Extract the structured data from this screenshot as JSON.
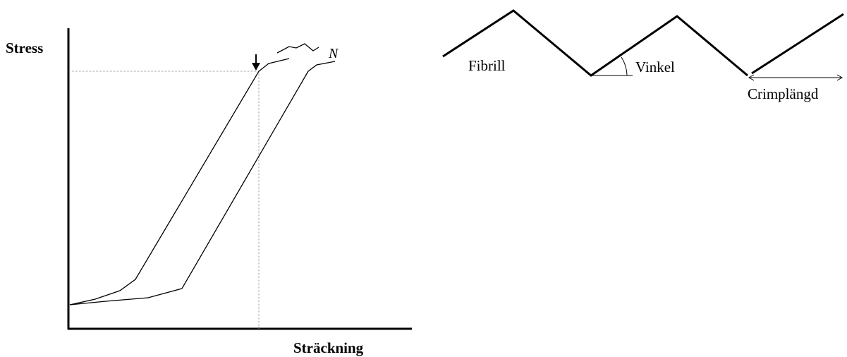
{
  "stress_strain_diagram": {
    "y_axis_label": "Stress",
    "x_axis_label": "Sträckning",
    "curve_marker": "N"
  },
  "crimp_diagram": {
    "fibril_label": "Fibrill",
    "angle_label": "Vinkel",
    "crimp_length_label": "Crimplängd"
  },
  "colors": {
    "line": "#000000",
    "guide_line": "#9a9a9a",
    "background": "#ffffff"
  }
}
